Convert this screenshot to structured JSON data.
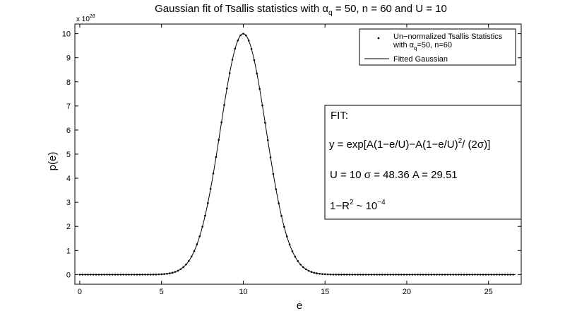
{
  "chart_data": {
    "type": "scatter",
    "title_prefix": "Gaussian fit of Tsallis statistics with ",
    "title_alpha": "α",
    "title_alpha_sub": "q",
    "title_suffix": " = 50, n = 60 and U = 10",
    "xlabel": "e",
    "ylabel": "p(e)",
    "y_multiplier_base": "x 10",
    "y_multiplier_exp": "28",
    "xlim": [
      -0.3,
      27.0
    ],
    "ylim": [
      -0.4,
      10.4
    ],
    "x_ticks": [
      0,
      5,
      10,
      15,
      20,
      25
    ],
    "x_tick_labels": [
      "0",
      "5",
      "10",
      "15",
      "20",
      "25"
    ],
    "y_ticks": [
      0,
      1,
      2,
      3,
      4,
      5,
      6,
      7,
      8,
      9,
      10
    ],
    "y_tick_labels": [
      "0",
      "1",
      "2",
      "3",
      "4",
      "5",
      "6",
      "7",
      "8",
      "9",
      "10"
    ],
    "grid": false,
    "legend_position": "top-right",
    "series": [
      {
        "name": "Un−normalized Tsallis Statistics",
        "name_line2_prefix": "with ",
        "name_line2_alpha": "α",
        "name_line2_sub": "q",
        "name_line2_suffix": "=50, n=60",
        "style": "dots",
        "model": "gaussian",
        "amplitude": 10.0,
        "center": 10.0,
        "sigma_e": 1.39,
        "x_start": 0.0,
        "x_end": 26.67,
        "x_step": 0.1667
      },
      {
        "name": "Fitted Gaussian",
        "style": "line",
        "model": "gaussian",
        "amplitude": 10.0,
        "center": 10.0,
        "sigma_e": 1.39,
        "x_start": 0.0,
        "x_end": 26.67,
        "x_step": 0.05
      }
    ],
    "annotation": {
      "line1": "FIT:",
      "line2_main": "y = exp[A(1−e/U)−A(1−e/U)",
      "line2_sup": "2",
      "line2_tail": "/ (2σ)]",
      "line3": "U = 10 σ = 48.36 A = 29.51",
      "line4_main": "1−R",
      "line4_sup1": "2",
      "line4_mid": " ~ 10",
      "line4_sup2": "−4"
    }
  }
}
